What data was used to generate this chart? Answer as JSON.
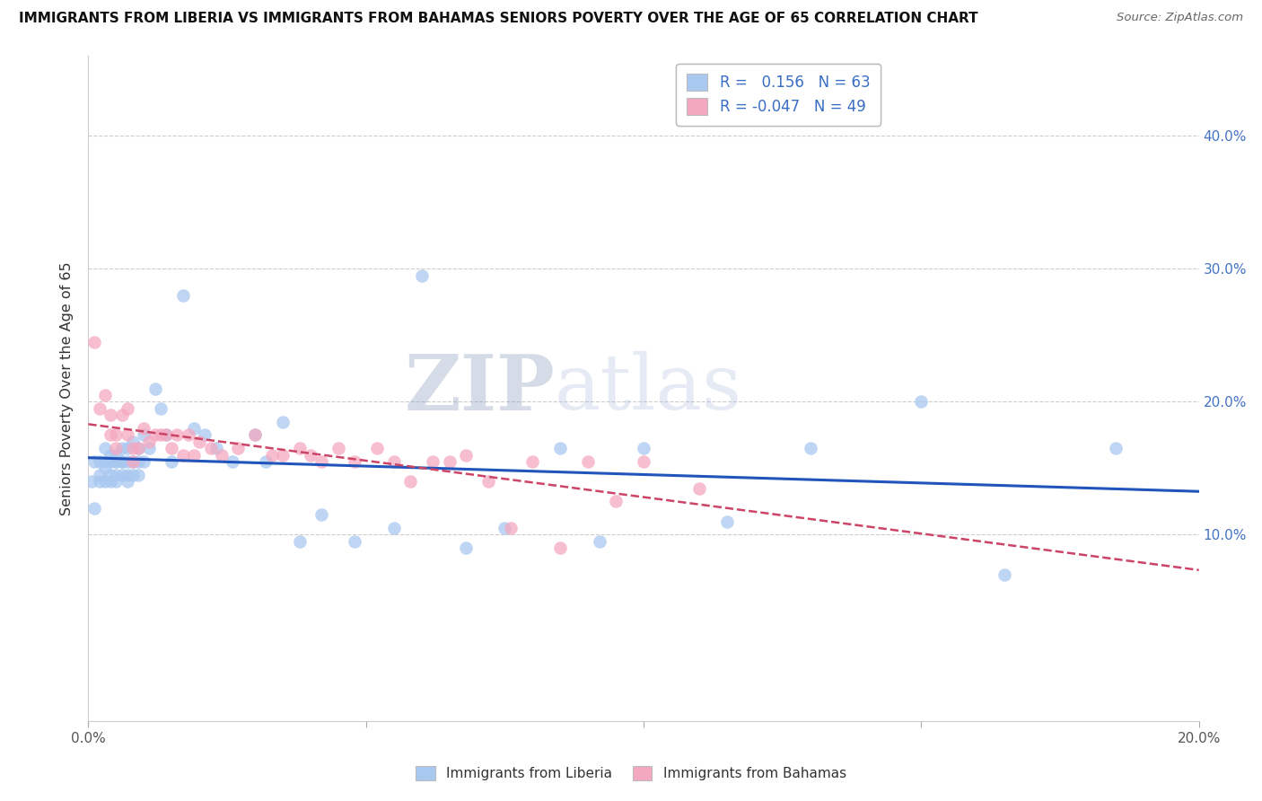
{
  "title": "IMMIGRANTS FROM LIBERIA VS IMMIGRANTS FROM BAHAMAS SENIORS POVERTY OVER THE AGE OF 65 CORRELATION CHART",
  "source": "Source: ZipAtlas.com",
  "ylabel": "Seniors Poverty Over the Age of 65",
  "xlim": [
    0.0,
    0.2
  ],
  "ylim": [
    -0.04,
    0.46
  ],
  "ytick_vals": [
    0.1,
    0.2,
    0.3,
    0.4
  ],
  "ytick_labels": [
    "10.0%",
    "20.0%",
    "30.0%",
    "40.0%"
  ],
  "xtick_vals": [
    0.0,
    0.05,
    0.1,
    0.15,
    0.2
  ],
  "xtick_labels_shown": {
    "0.0": "0.0%",
    "0.20": "20.0%"
  },
  "liberia_color": "#A8C8F0",
  "bahamas_color": "#F4A8C0",
  "liberia_line_color": "#2255BB",
  "bahamas_line_color": "#CC4466",
  "R_liberia": 0.156,
  "N_liberia": 63,
  "R_bahamas": -0.047,
  "N_bahamas": 49,
  "legend_label_liberia": "Immigrants from Liberia",
  "legend_label_bahamas": "Immigrants from Bahamas",
  "watermark_zip": "ZIP",
  "watermark_atlas": "atlas",
  "liberia_x": [
    0.0005,
    0.001,
    0.001,
    0.002,
    0.002,
    0.002,
    0.003,
    0.003,
    0.003,
    0.003,
    0.004,
    0.004,
    0.004,
    0.004,
    0.005,
    0.005,
    0.005,
    0.005,
    0.005,
    0.006,
    0.006,
    0.006,
    0.006,
    0.007,
    0.007,
    0.007,
    0.007,
    0.008,
    0.008,
    0.008,
    0.009,
    0.009,
    0.009,
    0.01,
    0.01,
    0.011,
    0.012,
    0.013,
    0.014,
    0.015,
    0.017,
    0.019,
    0.021,
    0.023,
    0.026,
    0.03,
    0.032,
    0.035,
    0.038,
    0.042,
    0.048,
    0.055,
    0.06,
    0.068,
    0.075,
    0.085,
    0.092,
    0.1,
    0.115,
    0.13,
    0.15,
    0.165,
    0.185
  ],
  "liberia_y": [
    0.14,
    0.12,
    0.155,
    0.14,
    0.155,
    0.145,
    0.15,
    0.14,
    0.155,
    0.165,
    0.155,
    0.14,
    0.16,
    0.145,
    0.155,
    0.145,
    0.16,
    0.14,
    0.155,
    0.155,
    0.165,
    0.145,
    0.155,
    0.155,
    0.165,
    0.145,
    0.14,
    0.17,
    0.155,
    0.145,
    0.165,
    0.155,
    0.145,
    0.175,
    0.155,
    0.165,
    0.21,
    0.195,
    0.175,
    0.155,
    0.28,
    0.18,
    0.175,
    0.165,
    0.155,
    0.175,
    0.155,
    0.185,
    0.095,
    0.115,
    0.095,
    0.105,
    0.295,
    0.09,
    0.105,
    0.165,
    0.095,
    0.165,
    0.11,
    0.165,
    0.2,
    0.07,
    0.165
  ],
  "bahamas_x": [
    0.001,
    0.002,
    0.003,
    0.004,
    0.004,
    0.005,
    0.005,
    0.006,
    0.007,
    0.007,
    0.008,
    0.008,
    0.009,
    0.01,
    0.011,
    0.012,
    0.013,
    0.014,
    0.015,
    0.016,
    0.017,
    0.018,
    0.019,
    0.02,
    0.022,
    0.024,
    0.027,
    0.03,
    0.033,
    0.035,
    0.038,
    0.04,
    0.042,
    0.045,
    0.048,
    0.052,
    0.055,
    0.058,
    0.062,
    0.065,
    0.068,
    0.072,
    0.076,
    0.08,
    0.085,
    0.09,
    0.095,
    0.1,
    0.11
  ],
  "bahamas_y": [
    0.245,
    0.195,
    0.205,
    0.19,
    0.175,
    0.175,
    0.165,
    0.19,
    0.195,
    0.175,
    0.165,
    0.155,
    0.165,
    0.18,
    0.17,
    0.175,
    0.175,
    0.175,
    0.165,
    0.175,
    0.16,
    0.175,
    0.16,
    0.17,
    0.165,
    0.16,
    0.165,
    0.175,
    0.16,
    0.16,
    0.165,
    0.16,
    0.155,
    0.165,
    0.155,
    0.165,
    0.155,
    0.14,
    0.155,
    0.155,
    0.16,
    0.14,
    0.105,
    0.155,
    0.09,
    0.155,
    0.125,
    0.155,
    0.135
  ]
}
